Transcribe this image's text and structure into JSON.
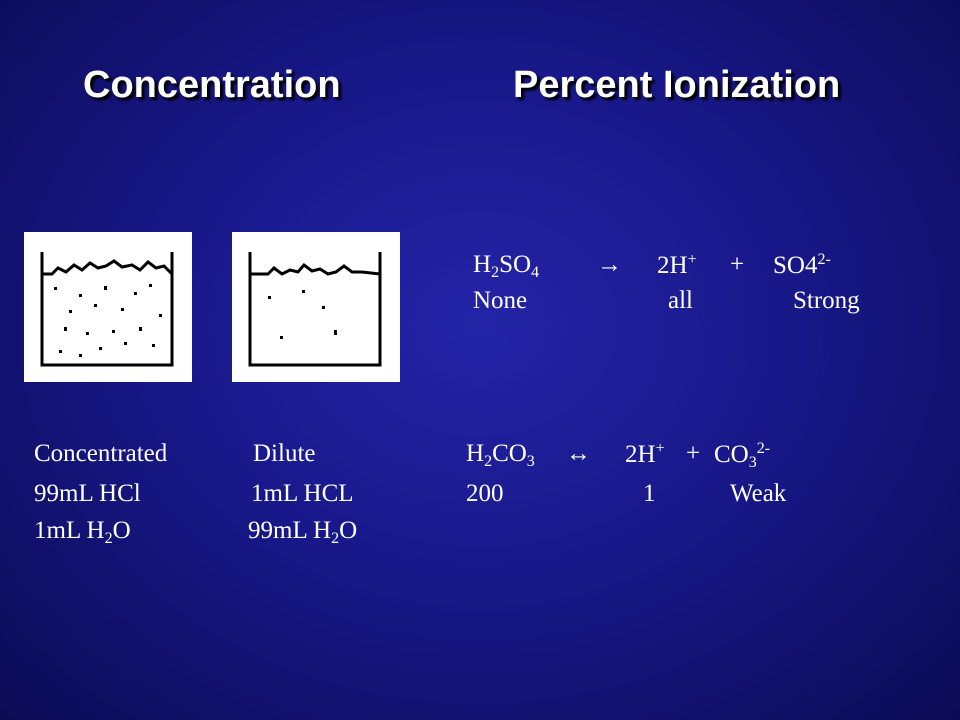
{
  "titles": [
    "Concentration",
    "Percent Ionization"
  ],
  "strong_acid": {
    "equation": [
      [
        {
          "text": "H"
        },
        {
          "sub": "2"
        },
        {
          "text": "SO"
        },
        {
          "sub": "4"
        }
      ],
      [
        {
          "text": "→"
        }
      ],
      [
        {
          "text": "2H"
        },
        {
          "sup": "+"
        }
      ],
      [
        {
          "text": "+"
        }
      ],
      [
        {
          "text": "SO4"
        },
        {
          "sup": "2-"
        }
      ]
    ],
    "labels": [
      "None",
      "all",
      "Strong"
    ]
  },
  "weak_acid": {
    "equation": [
      [
        {
          "text": "H"
        },
        {
          "sub": "2"
        },
        {
          "text": "CO"
        },
        {
          "sub": "3"
        }
      ],
      [
        {
          "text": "↔"
        }
      ],
      [
        {
          "text": "2H"
        },
        {
          "sup": "+"
        }
      ],
      [
        {
          "text": "+"
        }
      ],
      [
        {
          "text": "CO"
        },
        {
          "sub": "3"
        },
        {
          "sup": "2-"
        }
      ]
    ],
    "labels": [
      "200",
      "1",
      "Weak"
    ]
  },
  "solutions": [
    {
      "label": "Concentrated",
      "acid": "99mL HCl",
      "water": [
        {
          "text": "1mL H"
        },
        {
          "sub": "2"
        },
        {
          "text": "O"
        }
      ]
    },
    {
      "label": "Dilute",
      "acid": "1mL HCL",
      "water": [
        {
          "text": "99mL H"
        },
        {
          "sub": "2"
        },
        {
          "text": "O"
        }
      ]
    }
  ]
}
